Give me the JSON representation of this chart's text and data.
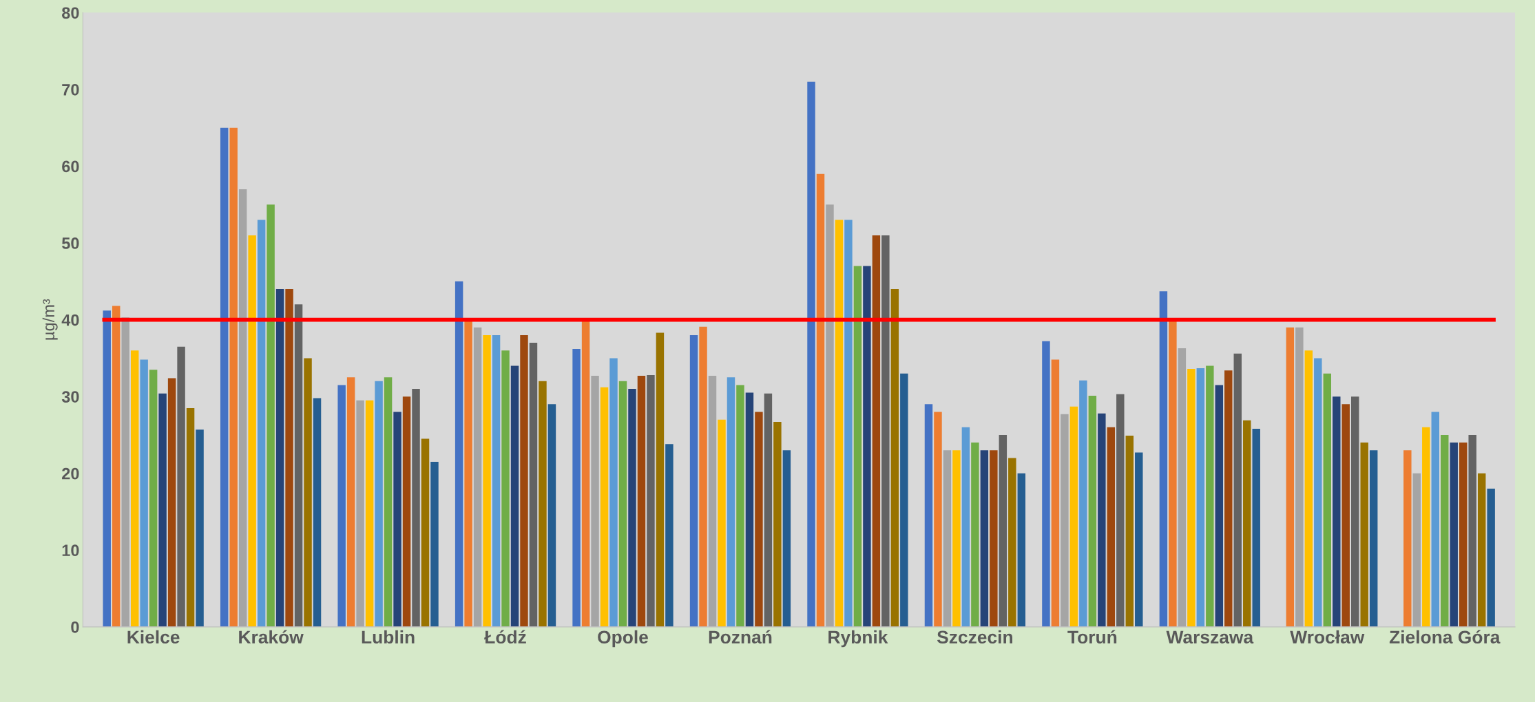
{
  "chart_data": {
    "type": "bar",
    "ylabel": "µg/m³",
    "categories": [
      "Kielce",
      "Kraków",
      "Lublin",
      "Łódź",
      "Opole",
      "Poznań",
      "Rybnik",
      "Szczecin",
      "Toruń",
      "Warszawa",
      "Wrocław",
      "Zielona Góra"
    ],
    "series": [
      {
        "color": "#4472c4",
        "values": [
          41.2,
          65,
          31.5,
          45,
          36.2,
          38,
          71,
          29,
          37.2,
          43.7,
          null,
          null
        ]
      },
      {
        "color": "#ed7d31",
        "values": [
          41.8,
          65,
          32.5,
          40,
          40,
          39.1,
          59,
          28,
          34.8,
          40,
          39,
          23
        ]
      },
      {
        "color": "#a5a5a5",
        "values": [
          40.3,
          57,
          29.5,
          39,
          32.7,
          32.7,
          55,
          23,
          27.7,
          36.3,
          39,
          20
        ]
      },
      {
        "color": "#ffc000",
        "values": [
          36,
          51,
          29.5,
          38,
          31.2,
          27,
          53,
          23,
          28.7,
          33.6,
          36,
          26
        ]
      },
      {
        "color": "#5b9bd5",
        "values": [
          34.8,
          53,
          32,
          38,
          35,
          32.5,
          53,
          26,
          32.1,
          33.7,
          35,
          28
        ]
      },
      {
        "color": "#70ad47",
        "values": [
          33.5,
          55,
          32.5,
          36,
          32,
          31.5,
          47,
          24,
          30.1,
          34,
          33,
          25
        ]
      },
      {
        "color": "#264478",
        "values": [
          30.4,
          44,
          28,
          34,
          31,
          30.5,
          47,
          23,
          27.8,
          31.5,
          30,
          24
        ]
      },
      {
        "color": "#9e480e",
        "values": [
          32.4,
          44,
          30,
          38,
          32.7,
          28,
          51,
          23,
          26,
          33.4,
          29,
          24
        ]
      },
      {
        "color": "#636363",
        "values": [
          36.5,
          42,
          31,
          37,
          32.8,
          30.4,
          51,
          25,
          30.3,
          35.6,
          30,
          25
        ]
      },
      {
        "color": "#997300",
        "values": [
          28.5,
          35,
          24.5,
          32,
          38.3,
          26.7,
          44,
          22,
          24.9,
          26.9,
          24,
          20
        ]
      },
      {
        "color": "#255e91",
        "values": [
          25.7,
          29.8,
          21.5,
          29,
          23.8,
          23,
          33,
          20,
          22.7,
          25.8,
          23,
          18
        ]
      }
    ],
    "ylim": [
      0,
      80
    ],
    "yticks": [
      0,
      10,
      20,
      30,
      40,
      50,
      60,
      70,
      80
    ],
    "grid": false,
    "legend": false,
    "ref_lines": [
      {
        "axis": "y",
        "value": 40,
        "color": "#ff0000"
      }
    ]
  }
}
